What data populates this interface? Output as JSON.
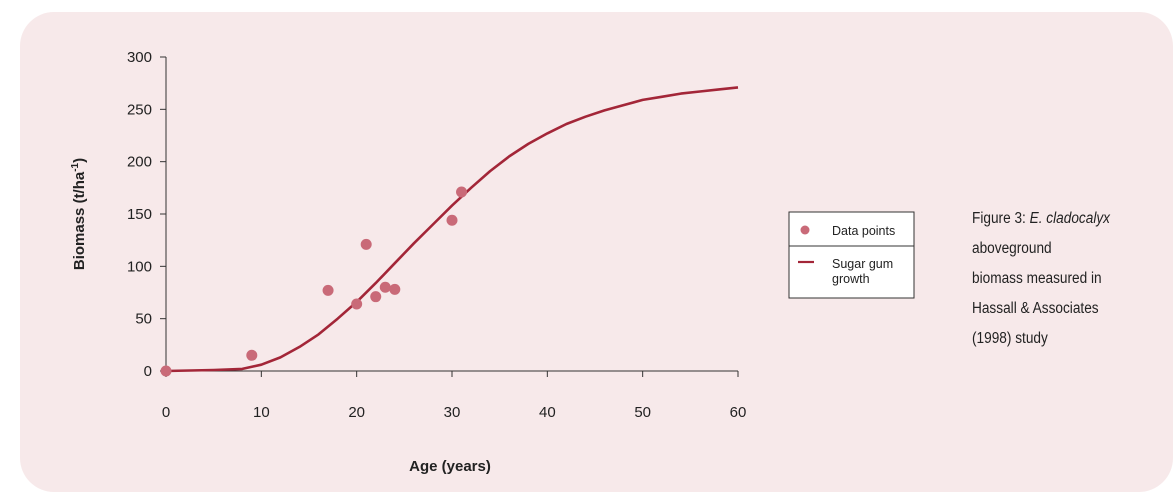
{
  "chart_data": {
    "type": "scatter",
    "xlabel": "Age (years)",
    "ylabel": "Biomass (t/ha",
    "ylabel_sup": "-1",
    "ylabel_close": ")",
    "xlim": [
      0,
      60
    ],
    "ylim": [
      0,
      300
    ],
    "xticks": [
      0,
      10,
      20,
      30,
      40,
      50,
      60
    ],
    "yticks": [
      0,
      50,
      100,
      150,
      200,
      250,
      300
    ],
    "grid": false,
    "legend_position": "right",
    "colors": {
      "points": "#c96a78",
      "curve": "#a32638",
      "axis": "#333333"
    },
    "series": [
      {
        "name": "Data points",
        "kind": "scatter",
        "points": [
          [
            0,
            0
          ],
          [
            9,
            15
          ],
          [
            17,
            77
          ],
          [
            20,
            64
          ],
          [
            21,
            121
          ],
          [
            22,
            71
          ],
          [
            23,
            80
          ],
          [
            24,
            78
          ],
          [
            30,
            144
          ],
          [
            31,
            171
          ]
        ]
      },
      {
        "name": "Sugar gum growth",
        "name_lines": [
          "Sugar gum",
          "growth"
        ],
        "kind": "line",
        "points": [
          [
            0,
            0
          ],
          [
            5,
            1
          ],
          [
            8,
            2
          ],
          [
            10,
            6
          ],
          [
            12,
            13
          ],
          [
            14,
            23
          ],
          [
            16,
            35
          ],
          [
            18,
            50
          ],
          [
            20,
            66
          ],
          [
            22,
            84
          ],
          [
            24,
            103
          ],
          [
            26,
            122
          ],
          [
            28,
            140
          ],
          [
            30,
            158
          ],
          [
            32,
            175
          ],
          [
            34,
            191
          ],
          [
            36,
            205
          ],
          [
            38,
            217
          ],
          [
            40,
            227
          ],
          [
            42,
            236
          ],
          [
            44,
            243
          ],
          [
            46,
            249
          ],
          [
            48,
            254
          ],
          [
            50,
            259
          ],
          [
            52,
            262
          ],
          [
            54,
            265
          ],
          [
            56,
            267
          ],
          [
            58,
            269
          ],
          [
            60,
            271
          ]
        ]
      }
    ]
  },
  "caption": {
    "prefix": "Figure 3: ",
    "species": "E. cladocalyx",
    "rest_lines": [
      "aboveground",
      "biomass measured in",
      "Hassall & Associates",
      "(1998) study"
    ]
  }
}
